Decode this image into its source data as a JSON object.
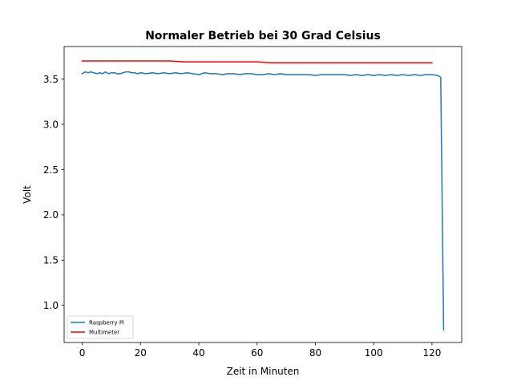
{
  "chart_data": {
    "type": "line",
    "title": "Normaler Betrieb bei 30 Grad Celsius",
    "xlabel": "Zeit in Minuten",
    "ylabel": "Volt",
    "xlim": [
      -6.2,
      130.2
    ],
    "ylim": [
      0.59,
      3.86
    ],
    "xticks": [
      0,
      20,
      40,
      60,
      80,
      100,
      120
    ],
    "yticks": [
      1.0,
      1.5,
      2.0,
      2.5,
      3.0,
      3.5
    ],
    "grid": false,
    "legend_position": "lower-left",
    "series": [
      {
        "name": "Raspberry Pi",
        "color": "#1f77b4",
        "x": [
          0,
          1,
          2,
          3,
          4,
          5,
          6,
          7,
          8,
          9,
          10,
          11,
          12,
          13,
          14,
          15,
          16,
          17,
          18,
          19,
          20,
          22,
          24,
          26,
          28,
          30,
          32,
          34,
          36,
          38,
          40,
          42,
          44,
          46,
          48,
          50,
          52,
          54,
          56,
          58,
          60,
          62,
          64,
          66,
          68,
          70,
          72,
          74,
          76,
          78,
          80,
          82,
          84,
          86,
          88,
          90,
          92,
          94,
          96,
          98,
          100,
          102,
          104,
          106,
          108,
          110,
          112,
          114,
          116,
          118,
          120,
          122,
          123,
          124
        ],
        "y": [
          3.56,
          3.58,
          3.57,
          3.58,
          3.57,
          3.56,
          3.57,
          3.56,
          3.58,
          3.56,
          3.57,
          3.57,
          3.56,
          3.56,
          3.57,
          3.58,
          3.58,
          3.57,
          3.57,
          3.56,
          3.57,
          3.56,
          3.57,
          3.56,
          3.57,
          3.56,
          3.57,
          3.56,
          3.57,
          3.56,
          3.55,
          3.57,
          3.56,
          3.56,
          3.55,
          3.56,
          3.56,
          3.55,
          3.56,
          3.56,
          3.55,
          3.55,
          3.56,
          3.55,
          3.56,
          3.55,
          3.55,
          3.55,
          3.55,
          3.55,
          3.54,
          3.55,
          3.55,
          3.55,
          3.55,
          3.55,
          3.54,
          3.55,
          3.54,
          3.55,
          3.54,
          3.55,
          3.54,
          3.55,
          3.54,
          3.55,
          3.54,
          3.55,
          3.54,
          3.55,
          3.55,
          3.54,
          3.52,
          0.73
        ]
      },
      {
        "name": "Multimeter",
        "color": "#ff0000",
        "x": [
          0,
          30,
          35,
          60,
          65,
          120
        ],
        "y": [
          3.7,
          3.7,
          3.69,
          3.69,
          3.68,
          3.68
        ]
      }
    ]
  }
}
